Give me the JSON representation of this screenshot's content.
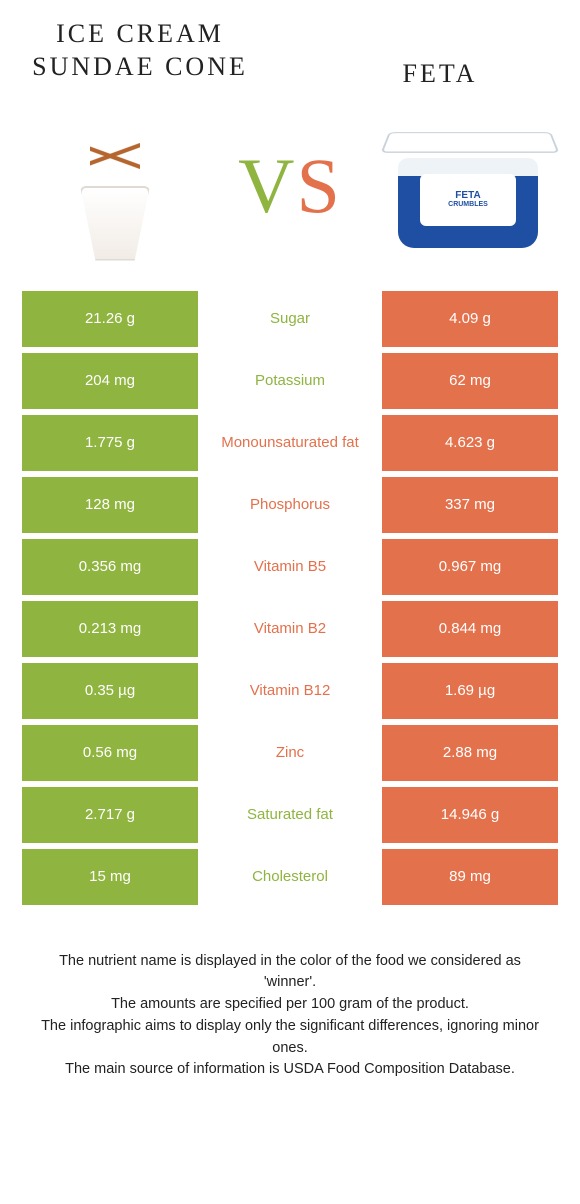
{
  "left_title": "ICE CREAM SUNDAE CONE",
  "right_title": "FETA",
  "vs_label": "VS",
  "feta_pack_line1": "FETA",
  "feta_pack_line2": "CRUMBLES",
  "colors": {
    "green": "#8fb440",
    "orange": "#e3714c",
    "text": "#222222",
    "background": "#ffffff"
  },
  "rows": [
    {
      "left": "21.26 g",
      "label": "Sugar",
      "right": "4.09 g",
      "winner": "left"
    },
    {
      "left": "204 mg",
      "label": "Potassium",
      "right": "62 mg",
      "winner": "left"
    },
    {
      "left": "1.775 g",
      "label": "Monounsaturated fat",
      "right": "4.623 g",
      "winner": "right"
    },
    {
      "left": "128 mg",
      "label": "Phosphorus",
      "right": "337 mg",
      "winner": "right"
    },
    {
      "left": "0.356 mg",
      "label": "Vitamin B5",
      "right": "0.967 mg",
      "winner": "right"
    },
    {
      "left": "0.213 mg",
      "label": "Vitamin B2",
      "right": "0.844 mg",
      "winner": "right"
    },
    {
      "left": "0.35 µg",
      "label": "Vitamin B12",
      "right": "1.69 µg",
      "winner": "right"
    },
    {
      "left": "0.56 mg",
      "label": "Zinc",
      "right": "2.88 mg",
      "winner": "right"
    },
    {
      "left": "2.717 g",
      "label": "Saturated fat",
      "right": "14.946 g",
      "winner": "left"
    },
    {
      "left": "15 mg",
      "label": "Cholesterol",
      "right": "89 mg",
      "winner": "left"
    }
  ],
  "footnotes": [
    "The nutrient name is displayed in the color of the food we considered as 'winner'.",
    "The amounts are specified per 100 gram of the product.",
    "The infographic aims to display only the significant differences, ignoring minor ones.",
    "The main source of information is USDA Food Composition Database."
  ]
}
